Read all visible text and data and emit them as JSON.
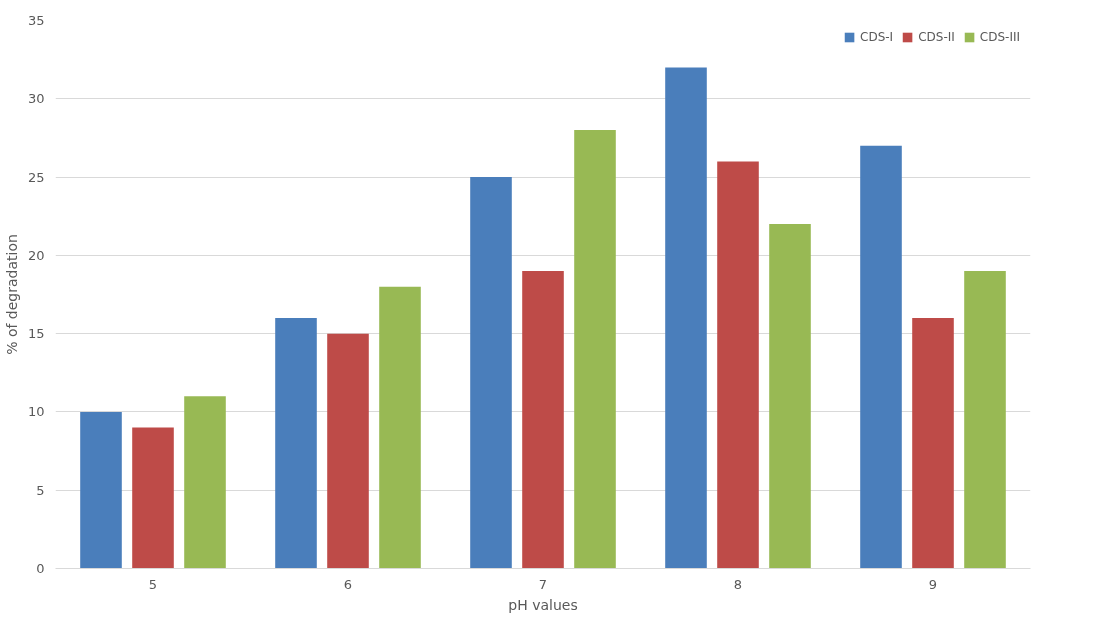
{
  "chart_data": {
    "type": "bar",
    "xlabel": "pH values",
    "ylabel": "% of degradation",
    "categories": [
      "5",
      "6",
      "7",
      "8",
      "9"
    ],
    "series": [
      {
        "name": "CDS-I",
        "color": "#4a7ebb",
        "values": [
          10,
          16,
          25,
          32,
          27
        ]
      },
      {
        "name": "CDS-II",
        "color": "#be4b48",
        "values": [
          9,
          15,
          19,
          26,
          16
        ]
      },
      {
        "name": "CDS-III",
        "color": "#98b954",
        "values": [
          11,
          18,
          28,
          22,
          19
        ]
      }
    ],
    "ylim": [
      0,
      35
    ],
    "yticks": [
      0,
      5,
      10,
      15,
      20,
      25,
      30,
      35
    ],
    "grid": "y",
    "legend": "top right"
  }
}
